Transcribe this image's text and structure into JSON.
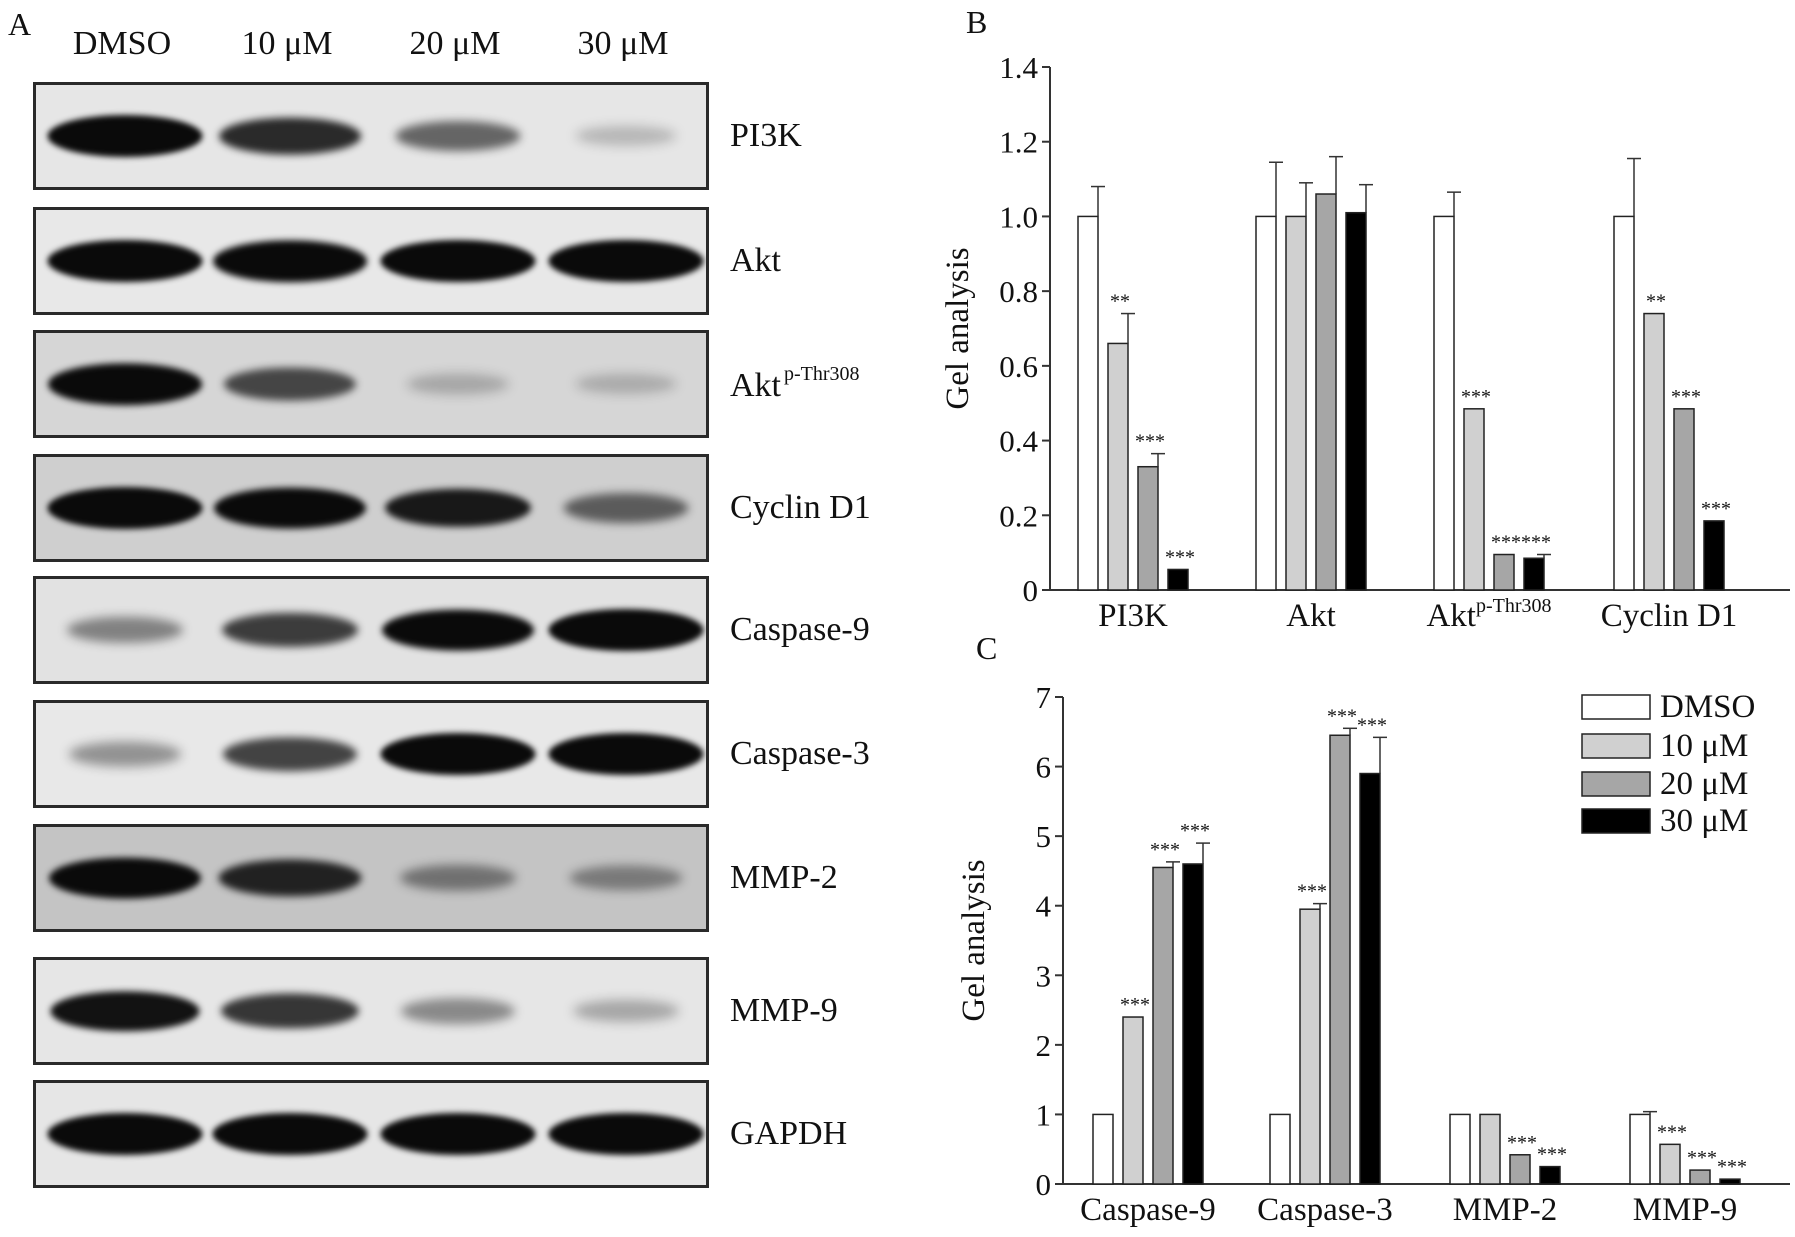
{
  "panels": {
    "a": "A",
    "b": "B",
    "c": "C"
  },
  "blot": {
    "lanes": [
      "DMSO",
      "10 μM",
      "20 μM",
      "30 μM"
    ],
    "rows": [
      {
        "label": "PI3K",
        "sup": "",
        "bg": "#e6e6e6",
        "intensity": [
          1.0,
          0.78,
          0.5,
          0.1
        ]
      },
      {
        "label": "Akt",
        "sup": "",
        "bg": "#e8e8e8",
        "intensity": [
          1.0,
          0.98,
          1.0,
          1.0
        ]
      },
      {
        "label": "Akt",
        "sup": "p-Thr308",
        "bg": "#d6d6d6",
        "intensity": [
          0.98,
          0.62,
          0.12,
          0.1
        ]
      },
      {
        "label": "Cyclin D1",
        "sup": "",
        "bg": "#cfcfcf",
        "intensity": [
          1.0,
          0.95,
          0.85,
          0.5
        ]
      },
      {
        "label": "Caspase-9",
        "sup": "",
        "bg": "#e2e2e2",
        "intensity": [
          0.35,
          0.68,
          0.95,
          1.0
        ]
      },
      {
        "label": "Caspase-3",
        "sup": "",
        "bg": "#e8e8e8",
        "intensity": [
          0.28,
          0.65,
          1.0,
          1.0
        ]
      },
      {
        "label": "MMP-2",
        "sup": "",
        "bg": "#c4c4c4",
        "intensity": [
          0.95,
          0.8,
          0.35,
          0.3
        ]
      },
      {
        "label": "MMP-9",
        "sup": "",
        "bg": "#e6e6e6",
        "intensity": [
          0.9,
          0.72,
          0.32,
          0.18
        ]
      },
      {
        "label": "GAPDH",
        "sup": "",
        "bg": "#e6e6e6",
        "intensity": [
          1.0,
          1.0,
          1.0,
          1.0
        ]
      }
    ]
  },
  "legend": [
    "DMSO",
    "10 μM",
    "20 μM",
    "30 μM"
  ],
  "colors": {
    "DMSO": "#ffffff",
    "10 μM": "#d0d0d0",
    "20 μM": "#a6a6a6",
    "30 μM": "#000000"
  },
  "chart_data": [
    {
      "type": "bar",
      "panel": "B",
      "ylabel": "Gel analysis",
      "ylim": [
        0,
        1.4
      ],
      "yticks": [
        "0",
        "0.2",
        "0.4",
        "0.6",
        "0.8",
        "1.0",
        "1.2",
        "1.4"
      ],
      "categories": [
        "PI3K",
        "Akt",
        "Akt|p-Thr308",
        "Cyclin D1"
      ],
      "series": [
        {
          "name": "DMSO",
          "values": [
            1.0,
            1.0,
            1.0,
            1.0
          ],
          "errors": [
            0.08,
            0.145,
            0.065,
            0.155
          ],
          "sig": [
            "",
            "",
            "",
            ""
          ]
        },
        {
          "name": "10 μM",
          "values": [
            0.66,
            1.0,
            0.485,
            0.74
          ],
          "errors": [
            0.08,
            0.09,
            0.0,
            0.0
          ],
          "sig": [
            "**",
            "",
            "***",
            "**"
          ]
        },
        {
          "name": "20 μM",
          "values": [
            0.33,
            1.06,
            0.095,
            0.485
          ],
          "errors": [
            0.035,
            0.1,
            0.0,
            0.0
          ],
          "sig": [
            "***",
            "",
            "***",
            "***"
          ]
        },
        {
          "name": "30 μM",
          "values": [
            0.055,
            1.01,
            0.085,
            0.185
          ],
          "errors": [
            0.0,
            0.075,
            0.01,
            0.0
          ],
          "sig": [
            "***",
            "",
            "***",
            "***"
          ]
        }
      ]
    },
    {
      "type": "bar",
      "panel": "C",
      "ylabel": "Gel analysis",
      "ylim": [
        0,
        7
      ],
      "yticks": [
        "0",
        "1",
        "2",
        "3",
        "4",
        "5",
        "6",
        "7"
      ],
      "categories": [
        "Caspase-9",
        "Caspase-3",
        "MMP-2",
        "MMP-9"
      ],
      "series": [
        {
          "name": "DMSO",
          "values": [
            1.0,
            1.0,
            1.0,
            1.0
          ],
          "errors": [
            0.0,
            0.0,
            0.0,
            0.04
          ],
          "sig": [
            "",
            "",
            "",
            ""
          ]
        },
        {
          "name": "10 μM",
          "values": [
            2.4,
            3.95,
            1.0,
            0.57
          ],
          "errors": [
            0.0,
            0.08,
            0.0,
            0.0
          ],
          "sig": [
            "***",
            "***",
            "",
            "***"
          ]
        },
        {
          "name": "20 μM",
          "values": [
            4.55,
            6.45,
            0.42,
            0.2
          ],
          "errors": [
            0.08,
            0.1,
            0.0,
            0.0
          ],
          "sig": [
            "***",
            "***",
            "***",
            "***"
          ]
        },
        {
          "name": "30 μM",
          "values": [
            4.6,
            5.9,
            0.25,
            0.07
          ],
          "errors": [
            0.3,
            0.52,
            0.0,
            0.0
          ],
          "sig": [
            "***",
            "***",
            "***",
            "***"
          ]
        }
      ]
    }
  ]
}
